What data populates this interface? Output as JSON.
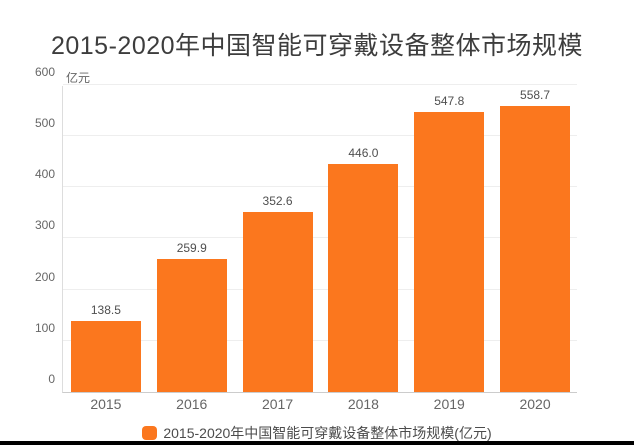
{
  "title": "2015-2020年中国智能可穿戴设备整体市场规模",
  "y_axis_unit": "亿元",
  "legend": {
    "label": "2015-2020年中国智能可穿戴设备整体市场规模(亿元)"
  },
  "colors": {
    "bar": "#fb771e",
    "title_text": "#3d3d3d",
    "axis_text": "#666666",
    "grid_line": "#eeeeee",
    "axis_line": "#cccccc",
    "value_label_text": "#4f4f4f",
    "bottom_bar": "#000000"
  },
  "chart_data": {
    "type": "bar",
    "categories": [
      "2015",
      "2016",
      "2017",
      "2018",
      "2019",
      "2020"
    ],
    "values": [
      138.5,
      259.9,
      352.6,
      446.0,
      547.8,
      558.7
    ],
    "value_labels": [
      "138.5",
      "259.9",
      "352.6",
      "446.0",
      "547.8",
      "558.7"
    ],
    "series_name": "2015-2020年中国智能可穿戴设备整体市场规模(亿元)",
    "title": "2015-2020年中国智能可穿戴设备整体市场规模",
    "xlabel": "",
    "ylabel": "亿元",
    "ylim": [
      0,
      600
    ],
    "y_ticks": [
      0,
      100,
      200,
      300,
      400,
      500,
      600
    ],
    "grid": true,
    "legend_position": "bottom"
  }
}
